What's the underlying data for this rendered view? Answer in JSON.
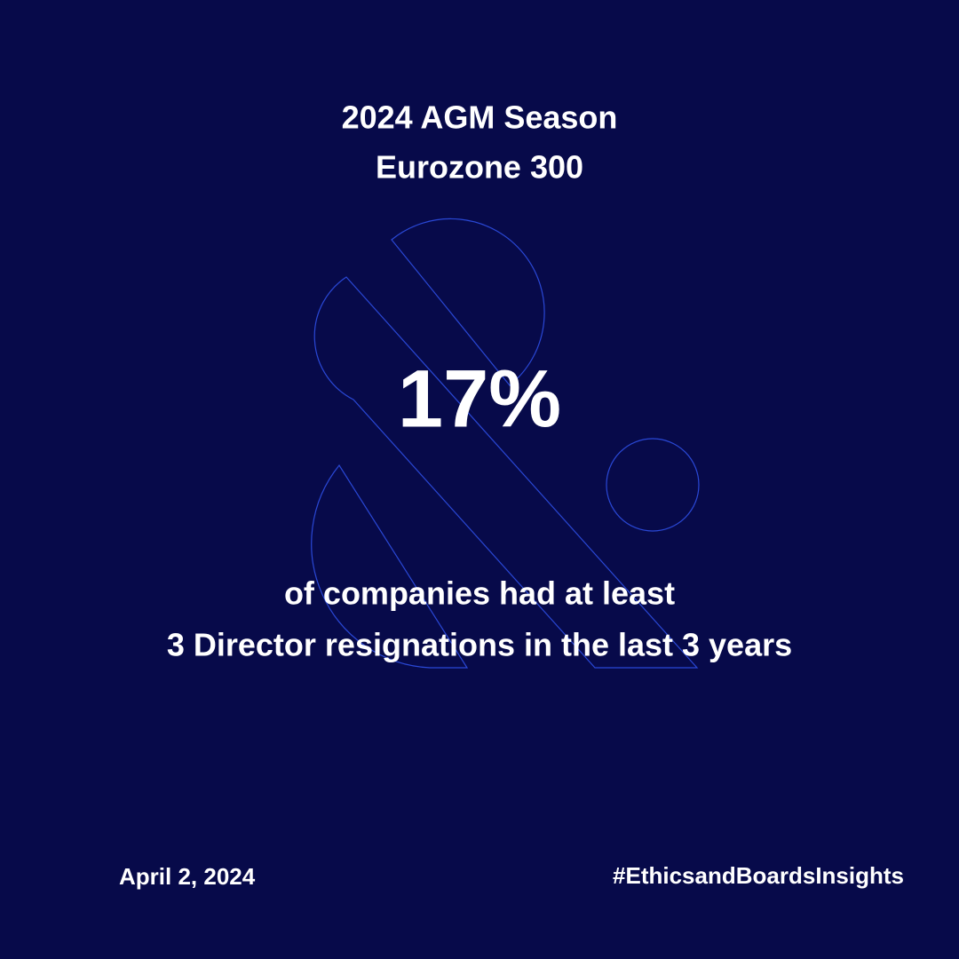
{
  "header": {
    "title_lines": [
      "2024 AGM Season",
      "Eurozone 300"
    ]
  },
  "stat": {
    "value_text": "17%",
    "description_lines": [
      "of companies had at least",
      "3 Director resignations in the last 3 years"
    ]
  },
  "footer": {
    "date": "April 2, 2024",
    "hashtag": "#EthicsandBoardsInsights"
  }
}
